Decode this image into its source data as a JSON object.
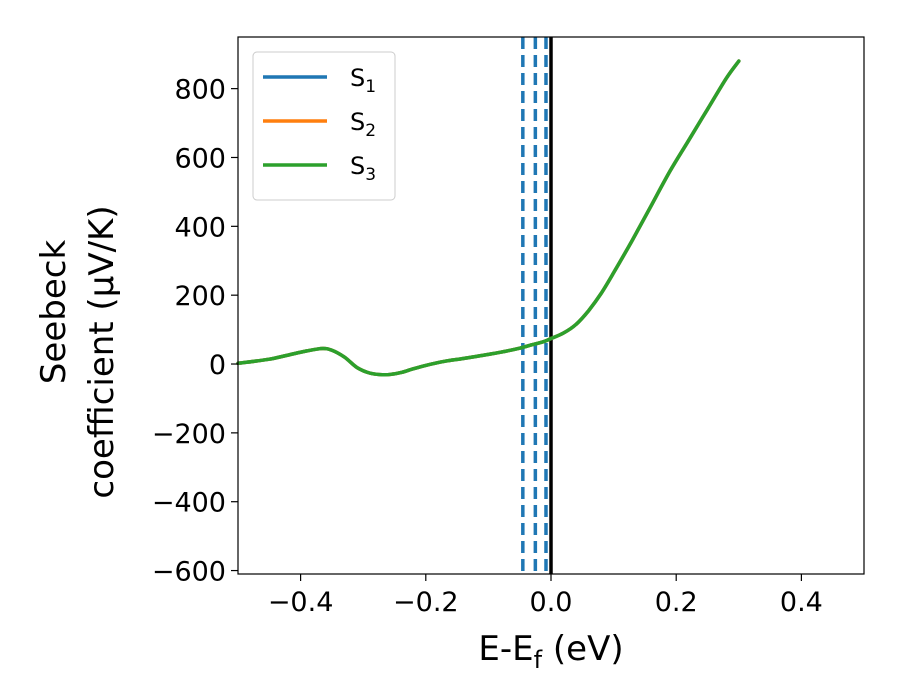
{
  "chart_data": {
    "type": "line",
    "xlabel_main": "E-E",
    "xlabel_sub": "f",
    "xlabel_unit": " (eV)",
    "ylabel_line1": "Seebeck",
    "ylabel_line2": "coefficient  (μV/K)",
    "xlim": [
      -0.5,
      0.5
    ],
    "ylim": [
      -610,
      950
    ],
    "x_ticks": [
      -0.4,
      -0.2,
      0.0,
      0.2,
      0.4
    ],
    "x_tick_labels": [
      "−0.4",
      "−0.2",
      "0.0",
      "0.2",
      "0.4"
    ],
    "y_ticks": [
      -600,
      -400,
      -200,
      0,
      200,
      400,
      600,
      800
    ],
    "y_tick_labels": [
      "−600",
      "−400",
      "−200",
      "0",
      "200",
      "400",
      "600",
      "800"
    ],
    "legend_position": "top-left",
    "series": [
      {
        "name": "S",
        "sub": "1",
        "color": "#1f77b4"
      },
      {
        "name": "S",
        "sub": "2",
        "color": "#ff7f0e"
      },
      {
        "name": "S",
        "sub": "3",
        "color": "#2ca02c"
      }
    ],
    "curve": {
      "x": [
        -0.5,
        -0.45,
        -0.42,
        -0.39,
        -0.365,
        -0.35,
        -0.33,
        -0.31,
        -0.29,
        -0.27,
        -0.255,
        -0.24,
        -0.22,
        -0.2,
        -0.17,
        -0.14,
        -0.1,
        -0.07,
        -0.05,
        -0.03,
        -0.01,
        0.0,
        0.02,
        0.04,
        0.06,
        0.08,
        0.1,
        0.13,
        0.16,
        0.19,
        0.22,
        0.25,
        0.28,
        0.3
      ],
      "y": [
        2,
        14,
        26,
        38,
        45,
        40,
        20,
        -10,
        -26,
        -31,
        -30,
        -25,
        -14,
        -4,
        8,
        16,
        28,
        38,
        46,
        56,
        66,
        74,
        90,
        115,
        155,
        205,
        265,
        360,
        460,
        560,
        650,
        740,
        830,
        880
      ]
    },
    "vlines": [
      {
        "x": -0.045,
        "color": "#1f77b4",
        "style": "dashed"
      },
      {
        "x": -0.025,
        "color": "#1f77b4",
        "style": "dashed"
      },
      {
        "x": -0.008,
        "color": "#1f77b4",
        "style": "dashed"
      },
      {
        "x": 0.0,
        "color": "#000000",
        "style": "solid"
      }
    ]
  }
}
